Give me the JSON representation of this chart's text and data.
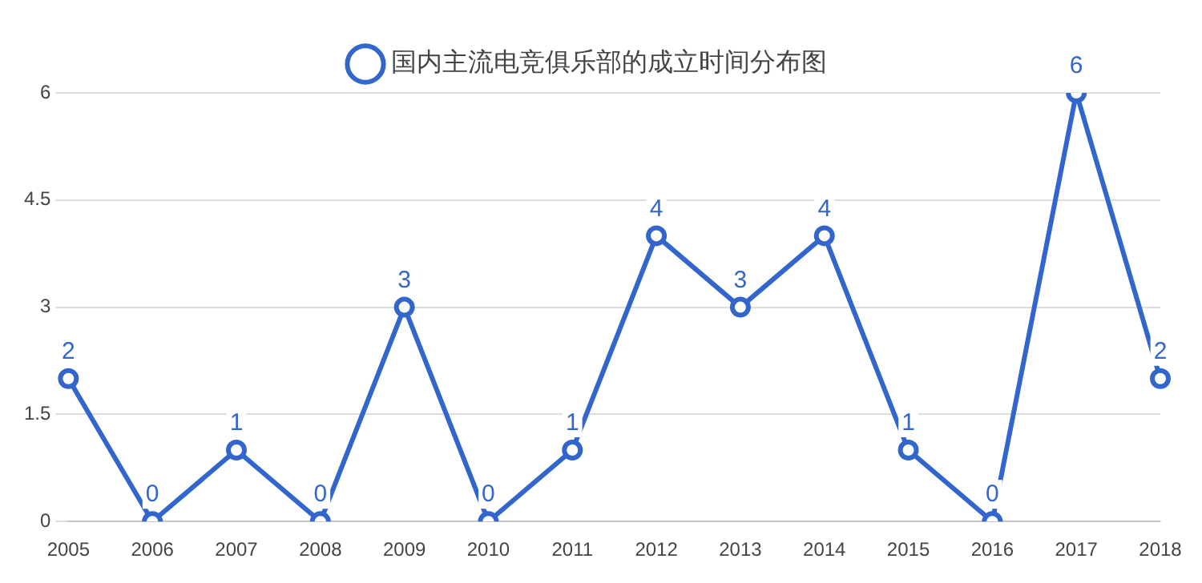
{
  "chart_data": {
    "type": "line",
    "categories": [
      "2005",
      "2006",
      "2007",
      "2008",
      "2009",
      "2010",
      "2011",
      "2012",
      "2013",
      "2014",
      "2015",
      "2016",
      "2017",
      "2018"
    ],
    "series": [
      {
        "name": "国内主流电竞俱乐部的成立时间分布图",
        "color": "#3366cc",
        "values": [
          2,
          0,
          1,
          0,
          3,
          0,
          1,
          4,
          3,
          4,
          1,
          0,
          6,
          2
        ]
      }
    ],
    "ylim": [
      0,
      6
    ],
    "yticks": [
      0,
      1.5,
      3,
      4.5,
      6
    ],
    "grid": "y",
    "legend": "top",
    "marker": "circle",
    "line_style": "solid",
    "data_labels": true
  }
}
